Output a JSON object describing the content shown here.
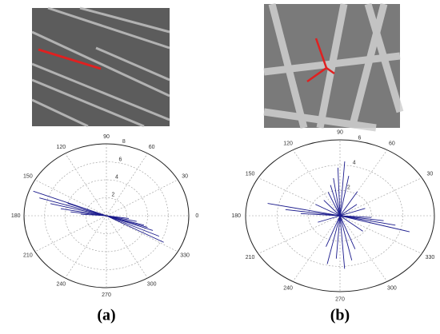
{
  "chart_data": [
    {
      "type": "polar",
      "caption": "(a)",
      "color": "#1a1a8c",
      "rlim": [
        0,
        8
      ],
      "rticks": [
        2,
        4,
        6,
        8
      ],
      "thetaticks": [
        0,
        30,
        60,
        90,
        120,
        150,
        180,
        210,
        240,
        270,
        300,
        330
      ],
      "angles": [
        159,
        163,
        166,
        170,
        173,
        176,
        332,
        336,
        340,
        344,
        348,
        352,
        160,
        342
      ],
      "values": [
        7.6,
        6.8,
        5.6,
        4.5,
        3.5,
        2.5,
        6.3,
        5.6,
        4.8,
        3.8,
        3,
        2.2,
        4,
        4.2
      ]
    },
    {
      "type": "polar",
      "caption": "(b)",
      "color": "#1a1a8c",
      "rlim": [
        0,
        6
      ],
      "rticks": [
        2,
        4,
        6
      ],
      "thetaticks": [
        0,
        30,
        60,
        90,
        120,
        150,
        180,
        210,
        240,
        270,
        300,
        330
      ],
      "angles": [
        168,
        172,
        176,
        344,
        348,
        352,
        356,
        80,
        86,
        92,
        98,
        104,
        112,
        250,
        258,
        266,
        274,
        282,
        290,
        130,
        150,
        200,
        320,
        20,
        40,
        60
      ],
      "values": [
        4.7,
        3.5,
        2.5,
        4.6,
        3.6,
        2.8,
        2,
        3.2,
        4.3,
        3.8,
        3,
        2.5,
        2,
        2.6,
        3.9,
        3.4,
        4.2,
        3.6,
        2.8,
        1.6,
        1.8,
        1.5,
        1.9,
        1.7,
        1.4,
        2.2
      ]
    }
  ]
}
